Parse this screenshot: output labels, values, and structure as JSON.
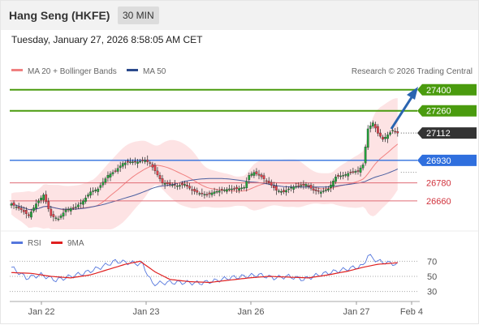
{
  "header": {
    "instrument": "Hang Seng (HKFE)",
    "timeframe": "30 MIN"
  },
  "datetime": "Tuesday, January 27, 2026 8:58:05 AM CET",
  "legend": {
    "ma20_bb": "MA 20 + Bollinger Bands",
    "ma50": "MA 50",
    "credit": "Research © 2026 Trading Central"
  },
  "rsi_legend": {
    "rsi": "RSI",
    "ma9": "9MA"
  },
  "colors": {
    "resistance": "#4a9b0e",
    "pivot": "#2f6fde",
    "support": "#e06b74",
    "current": "#333333",
    "bull": "#22a33b",
    "bear": "#e1414b",
    "band": "#fcd9db",
    "ma50": "#4b5fa0",
    "rsi": "#5577dd",
    "rsi_ma": "#e02020",
    "arrow": "#2a64b0"
  },
  "chart_data": [
    {
      "type": "line",
      "title": "Hang Seng (HKFE)",
      "ylim": [
        26470,
        27480
      ],
      "x_ticks": [
        "Jan 22",
        "Jan 23",
        "Jan 26",
        "Jan 27",
        "Feb 4"
      ],
      "levels": [
        {
          "value": 27400,
          "label": "27400",
          "kind": "resistance"
        },
        {
          "value": 27260,
          "label": "27260",
          "kind": "resistance"
        },
        {
          "value": 27112,
          "label": "27112",
          "kind": "current"
        },
        {
          "value": 26930,
          "label": "26930",
          "kind": "pivot"
        },
        {
          "value": 26780,
          "label": "26780",
          "kind": "support"
        },
        {
          "value": 26660,
          "label": "26660",
          "kind": "support"
        }
      ],
      "anchors": [
        [
          0,
          26640
        ],
        [
          4,
          26600
        ],
        [
          7,
          26560
        ],
        [
          10,
          26640
        ],
        [
          13,
          26700
        ],
        [
          16,
          26560
        ],
        [
          19,
          26540
        ],
        [
          22,
          26600
        ],
        [
          26,
          26620
        ],
        [
          29,
          26660
        ],
        [
          32,
          26720
        ],
        [
          35,
          26740
        ],
        [
          39,
          26830
        ],
        [
          42,
          26860
        ],
        [
          45,
          26910
        ],
        [
          48,
          26920
        ],
        [
          51,
          26920
        ],
        [
          54,
          26930
        ],
        [
          56,
          26910
        ],
        [
          58,
          26860
        ],
        [
          61,
          26780
        ],
        [
          64,
          26770
        ],
        [
          67,
          26760
        ],
        [
          70,
          26770
        ],
        [
          73,
          26730
        ],
        [
          76,
          26710
        ],
        [
          79,
          26700
        ],
        [
          82,
          26720
        ],
        [
          85,
          26730
        ],
        [
          88,
          26740
        ],
        [
          91,
          26740
        ],
        [
          94,
          26750
        ],
        [
          96,
          26830
        ],
        [
          98,
          26850
        ],
        [
          101,
          26820
        ],
        [
          104,
          26780
        ],
        [
          107,
          26730
        ],
        [
          110,
          26720
        ],
        [
          113,
          26750
        ],
        [
          116,
          26760
        ],
        [
          119,
          26770
        ],
        [
          122,
          26730
        ],
        [
          125,
          26720
        ],
        [
          128,
          26740
        ],
        [
          131,
          26820
        ],
        [
          134,
          26830
        ],
        [
          137,
          26850
        ],
        [
          140,
          26860
        ],
        [
          142,
          26900
        ],
        [
          144,
          27140
        ],
        [
          146,
          27180
        ],
        [
          148,
          27110
        ],
        [
          150,
          27070
        ],
        [
          152,
          27100
        ],
        [
          154,
          27130
        ],
        [
          156,
          27112
        ]
      ]
    },
    {
      "type": "line",
      "title": "RSI",
      "ylim": [
        20,
        80
      ],
      "y_ticks": [
        70,
        50,
        30
      ],
      "series": [
        {
          "name": "RSI",
          "anchors": [
            [
              0,
              62
            ],
            [
              6,
              48
            ],
            [
              12,
              52
            ],
            [
              18,
              45
            ],
            [
              24,
              50
            ],
            [
              30,
              55
            ],
            [
              36,
              62
            ],
            [
              42,
              70
            ],
            [
              48,
              68
            ],
            [
              53,
              66
            ],
            [
              57,
              40
            ],
            [
              63,
              42
            ],
            [
              70,
              42
            ],
            [
              76,
              41
            ],
            [
              82,
              44
            ],
            [
              88,
              48
            ],
            [
              94,
              50
            ],
            [
              100,
              52
            ],
            [
              106,
              48
            ],
            [
              112,
              50
            ],
            [
              118,
              46
            ],
            [
              124,
              52
            ],
            [
              130,
              56
            ],
            [
              136,
              60
            ],
            [
              142,
              64
            ],
            [
              144,
              78
            ],
            [
              148,
              70
            ],
            [
              152,
              68
            ],
            [
              156,
              66
            ]
          ]
        },
        {
          "name": "9MA",
          "anchors": [
            [
              0,
              55
            ],
            [
              8,
              54
            ],
            [
              16,
              50
            ],
            [
              24,
              48
            ],
            [
              32,
              52
            ],
            [
              40,
              60
            ],
            [
              46,
              66
            ],
            [
              52,
              70
            ],
            [
              58,
              56
            ],
            [
              64,
              46
            ],
            [
              72,
              43
            ],
            [
              80,
              42
            ],
            [
              88,
              45
            ],
            [
              96,
              48
            ],
            [
              104,
              50
            ],
            [
              112,
              49
            ],
            [
              120,
              48
            ],
            [
              128,
              52
            ],
            [
              136,
              57
            ],
            [
              142,
              62
            ],
            [
              148,
              66
            ],
            [
              156,
              68
            ]
          ]
        }
      ]
    }
  ]
}
